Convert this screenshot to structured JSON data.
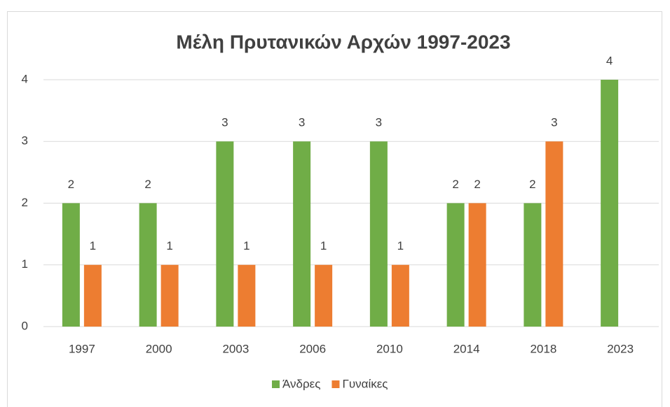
{
  "chart_data": {
    "type": "bar",
    "title": "Μέλη Πρυτανικών Αρχών 1997-2023",
    "categories": [
      "1997",
      "2000",
      "2003",
      "2006",
      "2010",
      "2014",
      "2018",
      "2023"
    ],
    "series": [
      {
        "name": "Άνδρες",
        "color": "#70ad47",
        "values": [
          2,
          2,
          3,
          3,
          3,
          2,
          2,
          4
        ]
      },
      {
        "name": "Γυναίκες",
        "color": "#ed7d31",
        "values": [
          1,
          1,
          1,
          1,
          1,
          2,
          3,
          null
        ]
      }
    ],
    "ylim": [
      0,
      4
    ],
    "yticks": [
      0,
      1,
      2,
      3,
      4
    ],
    "grid": true,
    "legend": "bottom"
  }
}
